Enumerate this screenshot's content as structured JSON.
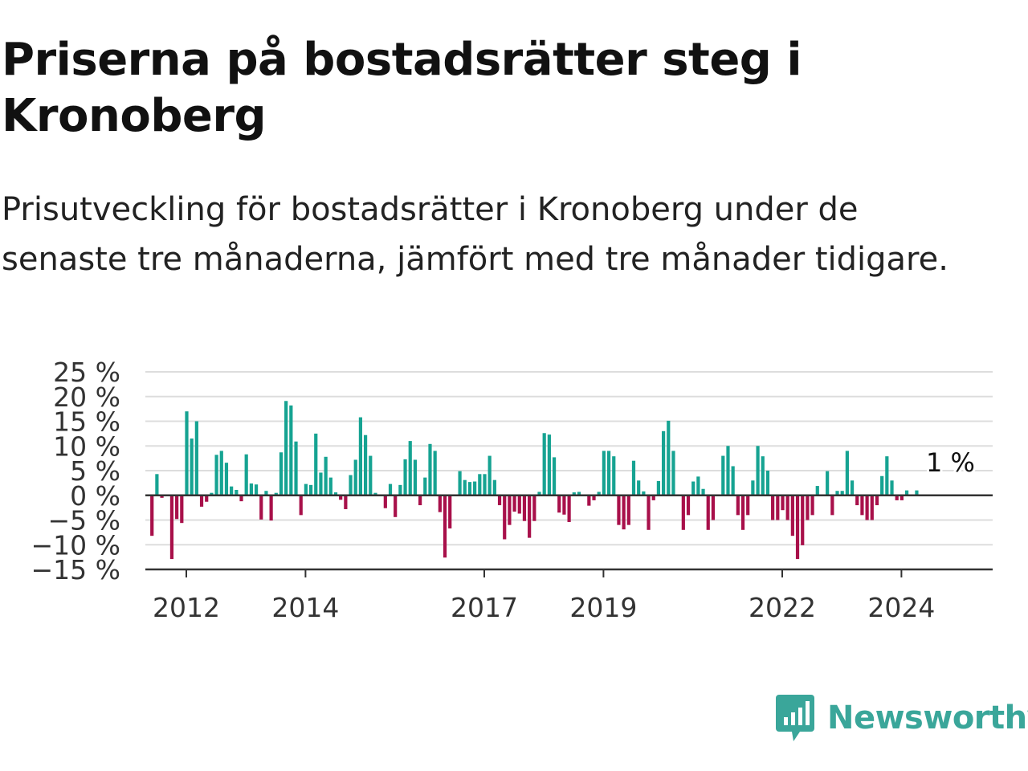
{
  "header": {
    "title": "Priserna på bostadsrätter steg i Kronoberg",
    "subtitle": "Prisutveckling för bostadsrätter i Kronoberg under de senaste tre månaderna, jämfört med tre månader tidigare."
  },
  "brand": {
    "name": "Newsworthy",
    "color": "#3aa69a"
  },
  "chart_data": {
    "type": "bar",
    "title": "Priserna på bostadsrätter steg i Kronoberg",
    "subtitle": "Prisutveckling för bostadsrätter i Kronoberg under de senaste tre månaderna, jämfört med tre månader tidigare.",
    "x_start_year": 2011.34,
    "points_per_year": 12,
    "ylim": [
      -15,
      25
    ],
    "yticks": [
      25,
      20,
      15,
      10,
      5,
      0,
      -5,
      -10,
      -15
    ],
    "ytick_labels": [
      "25 %",
      "20 %",
      "15 %",
      "10 %",
      "5 %",
      "0 %",
      "−5 %",
      "−10 %",
      "−15 %"
    ],
    "xticks": [
      2012,
      2014,
      2017,
      2019,
      2022,
      2024
    ],
    "xtick_labels": [
      "2012",
      "2014",
      "2017",
      "2019",
      "2022",
      "2024"
    ],
    "grid": true,
    "colors": {
      "positive": "#16a392",
      "negative": "#a8104a",
      "axis": "#333333",
      "grid": "#dddddd"
    },
    "end_label": "1 %",
    "values": [
      null,
      -8.2,
      4.3,
      -0.5,
      null,
      -12.9,
      -4.8,
      -5.6,
      17.0,
      11.5,
      15.0,
      -2.3,
      -1.3,
      0.5,
      8.2,
      9.0,
      6.6,
      1.8,
      1.1,
      -1.2,
      8.3,
      2.4,
      2.2,
      -4.9,
      0.9,
      -5.1,
      0.5,
      8.7,
      19.1,
      18.2,
      10.9,
      -4.0,
      2.3,
      2.1,
      12.5,
      4.6,
      7.8,
      3.6,
      0.6,
      -0.9,
      -2.8,
      4.1,
      7.2,
      15.8,
      12.2,
      8.0,
      0.5,
      null,
      -2.6,
      2.3,
      -4.4,
      2.1,
      7.3,
      11.0,
      7.2,
      -2.0,
      3.6,
      10.4,
      9.0,
      -3.4,
      -12.6,
      -6.7,
      null,
      4.9,
      3.1,
      2.7,
      2.8,
      4.3,
      4.3,
      8.0,
      3.1,
      -2.0,
      -8.9,
      -6.0,
      -3.3,
      -3.7,
      -5.2,
      -8.6,
      -5.2,
      0.7,
      12.6,
      12.3,
      7.7,
      -3.5,
      -3.9,
      -5.4,
      0.6,
      0.7,
      null,
      -2.1,
      -1.0,
      0.7,
      9.0,
      9.0,
      7.9,
      -6.0,
      -6.9,
      -6.0,
      7.0,
      3.0,
      0.8,
      -7.0,
      -1.0,
      2.9,
      13.0,
      15.1,
      9.0,
      null,
      -7.0,
      -4.0,
      2.8,
      3.8,
      1.3,
      -7.0,
      -5.0,
      null,
      8.0,
      10.0,
      5.9,
      -4.0,
      -7.0,
      -4.0,
      3.0,
      10.0,
      7.9,
      5.0,
      -5.0,
      -5.0,
      -3.0,
      -5.0,
      -8.2,
      -12.9,
      -10.1,
      -5.0,
      -4.0,
      1.9,
      null,
      4.9,
      -4.0,
      0.9,
      0.9,
      9.0,
      3.0,
      -2.0,
      -4.0,
      -5.0,
      -5.0,
      -2.0,
      3.9,
      7.9,
      3.0,
      -1.0,
      -1.0,
      1.0,
      null,
      1.0
    ]
  }
}
